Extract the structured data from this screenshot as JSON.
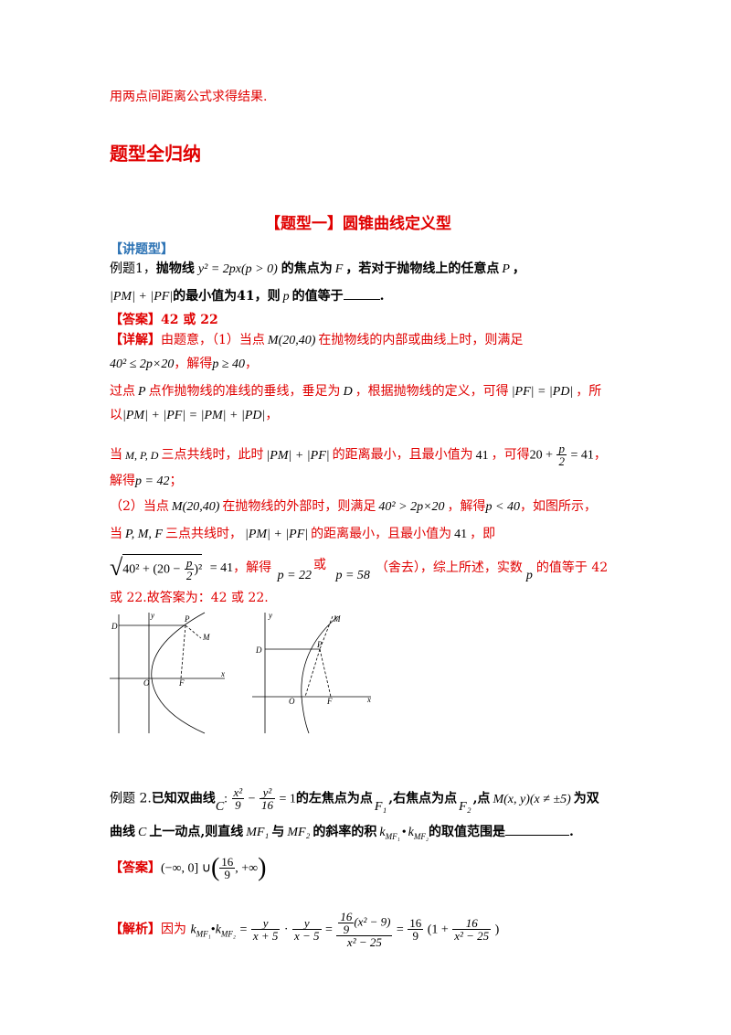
{
  "intro_line": "用两点间距离公式求得结果.",
  "section_title": "题型全归纳",
  "type_heading": "【题型一】圆锥曲线定义型",
  "lecture_tag": "【讲题型】",
  "ex1": {
    "label": "例题1，",
    "t1": "抛物线",
    "eq": "y² = 2px(p > 0)",
    "t2": "的焦点为",
    "F": "F",
    "t3": "，若对于抛物线上的任意点",
    "P": "P",
    "t4": "，",
    "expr1": "|PM| + |PF|",
    "t5": "的最小值为41，则",
    "p": "p",
    "t6": "的值等于",
    "t7": "."
  },
  "ans1": {
    "tag": "【答案】",
    "value": "42 或 22"
  },
  "detail": {
    "tag": "【详解】",
    "l1a": "由题意，（1）当点",
    "l1m": "M(20,40)",
    "l1b": "在抛物线的内部或曲线上时，则满足",
    "l2eq": "40² ≤ 2p×20",
    "l2a": "，解得",
    "l2eq2": "p ≥ 40",
    "l2b": "，",
    "l3a": "过点",
    "l3p": "P",
    "l3b": "点作抛物线的准线的垂线，垂足为",
    "l3d": "D",
    "l3c": "，根据抛物线的定义，可得",
    "l3eq": "|PF| = |PD|",
    "l3e": "，所",
    "l4a": "以",
    "l4eq": "|PM| + |PF| = |PM| + |PD|",
    "l4b": "，",
    "l5a": "当",
    "l5pts": "M, P, D",
    "l5b": "三点共线时，此时",
    "l5eq": "|PM| + |PF|",
    "l5c": "的距离最小，且最小值为",
    "l5v": "41",
    "l5d": "，可得",
    "l5eq2a": "20 +",
    "l5num": "p",
    "l5den": "2",
    "l5eq2b": "= 41",
    "l5e": "，",
    "l6a": "解得",
    "l6eq": "p = 42",
    "l6b": "；",
    "l7a": "（2）当点",
    "l7m": "M(20,40)",
    "l7b": "在抛物线的外部时，则满足",
    "l7eq": "40² > 2p×20",
    "l7c": "，解得",
    "l7eq2": "p < 40",
    "l7d": "，如图所示，",
    "l8a": "当",
    "l8pts": "P, M, F",
    "l8b": "三点共线时，",
    "l8eq": "|PM| + |PF|",
    "l8c": "的距离最小，且最小值为",
    "l8v": "41",
    "l8d": "，即",
    "l9rad": "40² + (20 −",
    "l9num": "p",
    "l9den": "2",
    "l9rad2": ")²",
    "l9eq": "= 41",
    "l9a": "，解得",
    "l9s1": "p = 22",
    "l9b": "或",
    "l9s2": "p = 58",
    "l9c": "（舍去），综上所述，实数",
    "l9p": "p",
    "l9d": "的值等于 42",
    "l10": "或 22.故答案为：42 或 22."
  },
  "fig1": {
    "D": "D",
    "P": "P",
    "M": "M",
    "O": "O",
    "F": "F",
    "x": "x",
    "y": "y"
  },
  "fig2": {
    "D": "D",
    "P": "P",
    "M": "M",
    "O": "O",
    "F": "F",
    "x": "x",
    "y": "y"
  },
  "ex2": {
    "label": "例题 2.",
    "t1": "已知双曲线",
    "C": "C",
    "colon": ":",
    "n1": "x²",
    "d1": "9",
    "minus": "−",
    "n2": "y²",
    "d2": "16",
    "eq1": "= 1",
    "t2": "的左焦点为点",
    "F1": "F₁",
    "t3": ",右焦点为点",
    "F2": "F₂",
    "t4": ",点",
    "M": "M(x, y)(x ≠ ±5)",
    "t5": "为双",
    "t6": "曲线",
    "C2": "C",
    "t7": "上一动点,则直线",
    "MF1": "MF₁",
    "t8": "与",
    "MF2": "MF₂",
    "t9": "的斜率的积",
    "k": "k",
    "kMF1": "MF₁",
    "dot": "•",
    "kMF2": "MF₂",
    "t10": "的取值范围是",
    "t11": "."
  },
  "ans2": {
    "tag": "【答案】",
    "a": "(−∞, 0] ∪",
    "n": "16",
    "d": "9",
    "b": ", +∞"
  },
  "analysis": {
    "tag": "【解析】",
    "t1": "因为",
    "lhs": "k",
    "s1": "MF₁",
    "dot": "•",
    "s2": "MF₂",
    "eq": "=",
    "n1": "y",
    "d1": "x + 5",
    "cdot": "·",
    "n2": "y",
    "d2": "x − 5",
    "eq2": "=",
    "bign": "16",
    "bigd": "9",
    "bigr": "(x² − 9)",
    "bigden": "x² − 25",
    "eq3": "=",
    "n3": "16",
    "d3": "9",
    "r1": "(1 +",
    "n4": "16",
    "d4": "x² − 25",
    "r2": ")"
  }
}
